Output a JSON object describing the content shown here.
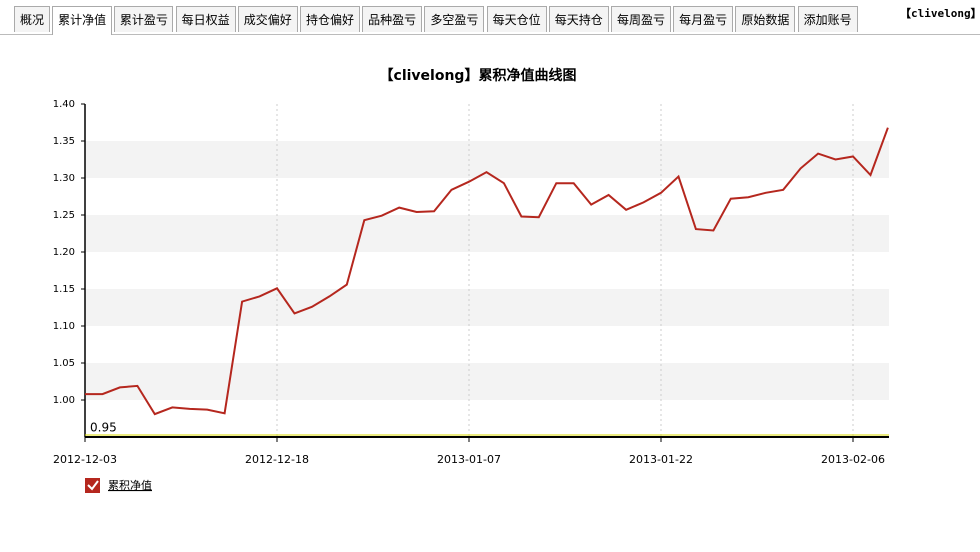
{
  "tabs": [
    "概况",
    "累计净值",
    "累计盈亏",
    "每日权益",
    "成交偏好",
    "持仓偏好",
    "品种盈亏",
    "多空盈亏",
    "每天仓位",
    "每天持仓",
    "每周盈亏",
    "每月盈亏",
    "原始数据",
    "添加账号"
  ],
  "account_label": "【clivelong】",
  "chart_data": {
    "type": "line",
    "title": "【clivelong】累积净值曲线图",
    "categories": [
      "2012-12-03",
      null,
      null,
      null,
      null,
      null,
      null,
      null,
      null,
      null,
      null,
      "2012-12-18",
      null,
      null,
      null,
      null,
      null,
      null,
      null,
      null,
      null,
      null,
      "2013-01-07",
      null,
      null,
      null,
      null,
      null,
      null,
      null,
      null,
      null,
      null,
      "2013-01-22",
      null,
      null,
      null,
      null,
      null,
      null,
      null,
      null,
      null,
      null,
      "2013-02-06",
      null,
      null
    ],
    "series": [
      {
        "name": "累积净值",
        "color": "#b5271e",
        "values": [
          1.008,
          1.008,
          1.017,
          1.019,
          0.981,
          0.99,
          0.988,
          0.987,
          0.982,
          1.133,
          1.14,
          1.151,
          1.117,
          1.126,
          1.14,
          1.156,
          1.243,
          1.249,
          1.26,
          1.254,
          1.255,
          1.284,
          1.295,
          1.308,
          1.293,
          1.248,
          1.247,
          1.293,
          1.293,
          1.264,
          1.277,
          1.257,
          1.267,
          1.28,
          1.302,
          1.231,
          1.229,
          1.272,
          1.274,
          1.28,
          1.284,
          1.313,
          1.333,
          1.325,
          1.329,
          1.304,
          1.368
        ]
      }
    ],
    "ylim": [
      0.95,
      1.4
    ],
    "yticks": [
      0.95,
      {
        "value": 1,
        "label": "1.00"
      },
      1.05,
      {
        "value": 1.1,
        "label": "1.10"
      },
      1.15,
      {
        "value": 1.2,
        "label": "1.20"
      },
      1.25,
      {
        "value": 1.3,
        "label": "1.30"
      },
      1.35,
      {
        "value": 1.4,
        "label": "1.40"
      }
    ],
    "grid": true
  }
}
